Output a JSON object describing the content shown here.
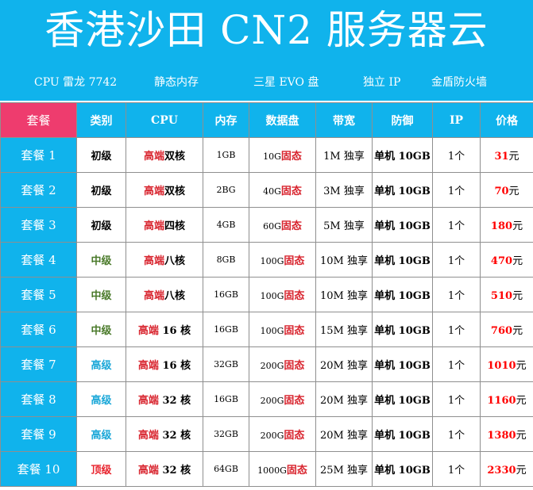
{
  "header": {
    "title": "香港沙田 CN2 服务器云",
    "features": [
      "CPU 雷龙 7742",
      "静态内存",
      "三星 EVO 盘",
      "独立 IP",
      "金盾防火墙"
    ]
  },
  "table": {
    "columns": [
      "套餐",
      "类别",
      "CPU",
      "内存",
      "数据盘",
      "带宽",
      "防御",
      "IP",
      "价格"
    ],
    "rows": [
      {
        "plan": "套餐 1",
        "level": "初级",
        "cpu_hl": "高端",
        "cpu": "双核",
        "ram": "1GB",
        "disk": "10G",
        "disk_type": "固态",
        "bw": "1M 独享",
        "ddos": "单机 10GB",
        "ip": "1个",
        "price": "31",
        "currency": "元"
      },
      {
        "plan": "套餐 2",
        "level": "初级",
        "cpu_hl": "高端",
        "cpu": "双核",
        "ram": "2BG",
        "disk": "40G",
        "disk_type": "固态",
        "bw": "3M 独享",
        "ddos": "单机 10GB",
        "ip": "1个",
        "price": "70",
        "currency": "元"
      },
      {
        "plan": "套餐 3",
        "level": "初级",
        "cpu_hl": "高端",
        "cpu": "四核",
        "ram": "4GB",
        "disk": "60G",
        "disk_type": "固态",
        "bw": "5M 独享",
        "ddos": "单机 10GB",
        "ip": "1个",
        "price": "180",
        "currency": "元"
      },
      {
        "plan": "套餐 4",
        "level": "中级",
        "cpu_hl": "高端",
        "cpu": "八核",
        "ram": "8GB",
        "disk": "100G",
        "disk_type": "固态",
        "bw": "10M 独享",
        "ddos": "单机 10GB",
        "ip": "1个",
        "price": "470",
        "currency": "元"
      },
      {
        "plan": "套餐 5",
        "level": "中级",
        "cpu_hl": "高端",
        "cpu": "八核",
        "ram": "16GB",
        "disk": "100G",
        "disk_type": "固态",
        "bw": "10M 独享",
        "ddos": "单机 10GB",
        "ip": "1个",
        "price": "510",
        "currency": "元"
      },
      {
        "plan": "套餐 6",
        "level": "中级",
        "cpu_hl": "高端",
        "cpu": " 16 核",
        "ram": "16GB",
        "disk": "100G",
        "disk_type": "固态",
        "bw": "15M 独享",
        "ddos": "单机 10GB",
        "ip": "1个",
        "price": "760",
        "currency": "元"
      },
      {
        "plan": "套餐 7",
        "level": "高级",
        "cpu_hl": "高端",
        "cpu": " 16 核",
        "ram": "32GB",
        "disk": "200G",
        "disk_type": "固态",
        "bw": "20M 独享",
        "ddos": "单机 10GB",
        "ip": "1个",
        "price": "1010",
        "currency": "元"
      },
      {
        "plan": "套餐 8",
        "level": "高级",
        "cpu_hl": "高端",
        "cpu": " 32 核",
        "ram": "16GB",
        "disk": "200G",
        "disk_type": "固态",
        "bw": "20M 独享",
        "ddos": "单机 10GB",
        "ip": "1个",
        "price": "1160",
        "currency": "元"
      },
      {
        "plan": "套餐 9",
        "level": "高级",
        "cpu_hl": "高端",
        "cpu": " 32 核",
        "ram": "32GB",
        "disk": "200G",
        "disk_type": "固态",
        "bw": "20M 独享",
        "ddos": "单机 10GB",
        "ip": "1个",
        "price": "1380",
        "currency": "元"
      },
      {
        "plan": "套餐 10",
        "level": "顶级",
        "cpu_hl": "高端",
        "cpu": " 32 核",
        "ram": "64GB",
        "disk": "1000G",
        "disk_type": "固态",
        "bw": "25M 独享",
        "ddos": "单机 10GB",
        "ip": "1个",
        "price": "2330",
        "currency": "元"
      }
    ]
  },
  "colors": {
    "banner": "#10b3ec",
    "plan_header": "#ee3c6e",
    "highlight": "#d8232d",
    "price": "#ff0000",
    "level_basic": "#000000",
    "level_mid": "#4a7a2a",
    "level_high": "#1aa7d8",
    "level_top": "#e8232d"
  }
}
